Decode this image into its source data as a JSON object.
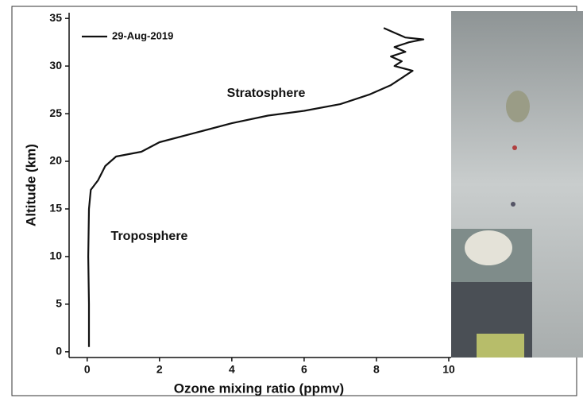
{
  "chart_data": {
    "type": "line",
    "x_label": "Ozone mixing ratio (ppmv)",
    "y_label": "Altitude (km)",
    "annotations": [
      "Stratosphere",
      "Troposphere"
    ],
    "x": [
      0.05,
      0.05,
      0.03,
      0.05,
      0.1,
      0.3,
      0.5,
      0.8,
      1.5,
      2,
      3,
      4,
      5,
      6,
      7,
      7.8,
      8.4,
      8.8,
      9,
      8.5,
      8.7,
      8.4,
      8.8,
      8.5,
      8.9,
      9.3,
      8.8,
      8.5,
      8.2
    ],
    "series": [
      {
        "name": "29-Aug-2019",
        "color": "#111111",
        "values": [
          0.5,
          5,
          10,
          15,
          17,
          18,
          19.5,
          20.5,
          21,
          22,
          23,
          24,
          24.8,
          25.3,
          26,
          27,
          28,
          29,
          29.5,
          30,
          30.5,
          31,
          31.5,
          32,
          32.5,
          32.8,
          33,
          33.5,
          34
        ]
      }
    ],
    "xlim": [
      -0.5,
      10
    ],
    "ylim": [
      -0.6,
      35.6
    ],
    "xticks": [
      0,
      2,
      4,
      6,
      8,
      10
    ],
    "yticks": [
      0,
      5,
      10,
      15,
      20,
      25,
      30,
      35
    ],
    "legend": "upper left"
  }
}
